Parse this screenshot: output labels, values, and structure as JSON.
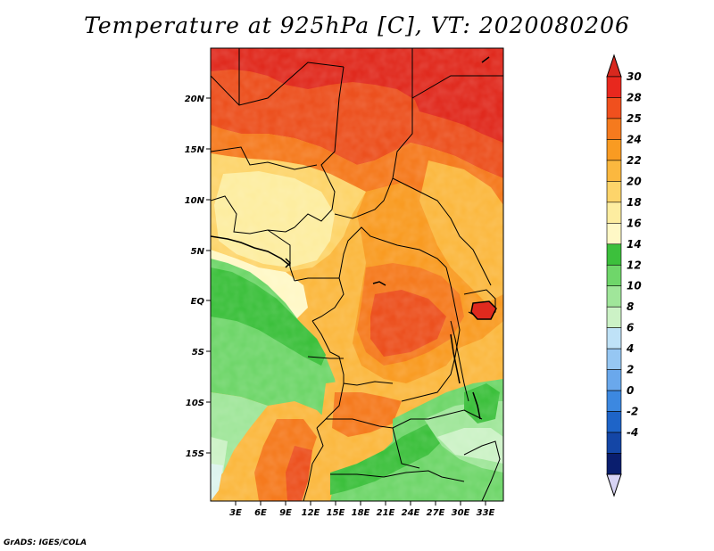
{
  "title": "Temperature at 925hPa [C], VT: 2020080206",
  "credit": "GrADS: IGES/COLA",
  "y_axis_labels": [
    "20N",
    "15N",
    "10N",
    "5N",
    "EQ",
    "5S",
    "10S",
    "15S"
  ],
  "x_axis_labels": [
    "3E",
    "6E",
    "9E",
    "12E",
    "15E",
    "18E",
    "21E",
    "24E",
    "27E",
    "30E",
    "33E"
  ],
  "colorbar": {
    "levels": [
      "30",
      "28",
      "25",
      "24",
      "22",
      "20",
      "18",
      "16",
      "14",
      "12",
      "10",
      "8",
      "6",
      "4",
      "2",
      "0",
      "-2",
      "-4"
    ],
    "colors_top_to_bottom": [
      "#e8281e",
      "#f0501e",
      "#f57a1e",
      "#f99b22",
      "#fbb83f",
      "#fdd46a",
      "#fdeda0",
      "#fff8c6",
      "#3cc03c",
      "#6fd66a",
      "#a0e69a",
      "#ccf2c6",
      "#bfe2f7",
      "#96c7f3",
      "#6aa8ec",
      "#3c88e0",
      "#1e64c8",
      "#1446a6",
      "#0a1e6e"
    ],
    "under_color": "#d8d4f4",
    "over_color": "#d8281e"
  },
  "map_colors": {
    "deep_red": "#e02a1e",
    "red": "#ec501e",
    "orange_dark": "#f57a1e",
    "orange": "#f99b22",
    "orange_light": "#fbb83f",
    "yellow": "#fdd46a",
    "pale_yellow": "#fdeda0",
    "cream": "#fff8c6",
    "green_dark": "#3cc03c",
    "green": "#6fd66a",
    "green_light": "#a0e69a",
    "green_pale": "#ccf2c6",
    "cyan_pale": "#ddf4ee",
    "border": "#000000"
  }
}
